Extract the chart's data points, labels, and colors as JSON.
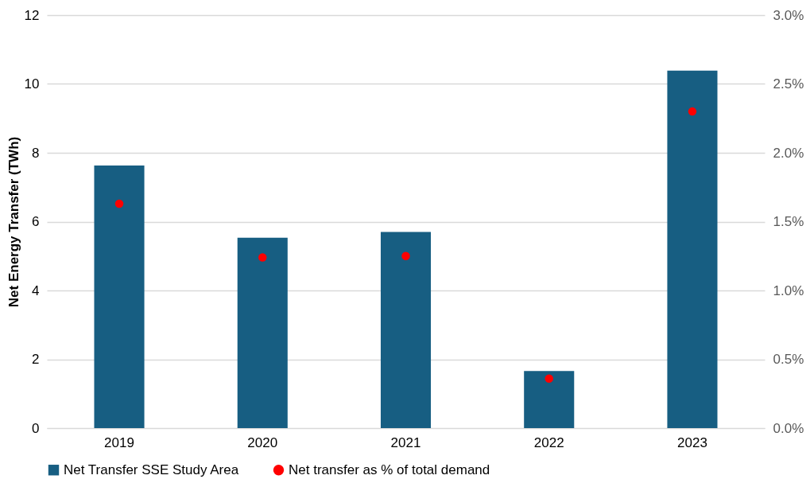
{
  "chart_data": {
    "type": "bar",
    "ylabel": "Net Energy Transfer (TWh)",
    "categories": [
      "2019",
      "2020",
      "2021",
      "2022",
      "2023"
    ],
    "series": [
      {
        "name": "Net Transfer SSE Study Area",
        "color": "#175e82",
        "values": [
          7.63,
          5.53,
          5.7,
          1.66,
          10.39
        ]
      },
      {
        "name": "Net transfer as % of total demand",
        "type": "scatter",
        "axis": "y2",
        "color": "#ff0000",
        "values": [
          1.63,
          1.24,
          1.25,
          0.36,
          2.3
        ]
      }
    ],
    "ylim": [
      0,
      12
    ],
    "yticks": [
      0,
      2,
      4,
      6,
      8,
      10,
      12
    ],
    "y2lim": [
      0,
      3
    ],
    "y2ticks": [
      {
        "value": 0,
        "label": "0.0%"
      },
      {
        "value": 0.5,
        "label": "0.5%"
      },
      {
        "value": 1,
        "label": "1.0%"
      },
      {
        "value": 1.5,
        "label": "1.5%"
      },
      {
        "value": 2,
        "label": "2.0%"
      },
      {
        "value": 2.5,
        "label": "2.5%"
      },
      {
        "value": 3,
        "label": "3.0%"
      }
    ],
    "grid": "y",
    "legend": "bottom",
    "marker": "circle"
  }
}
